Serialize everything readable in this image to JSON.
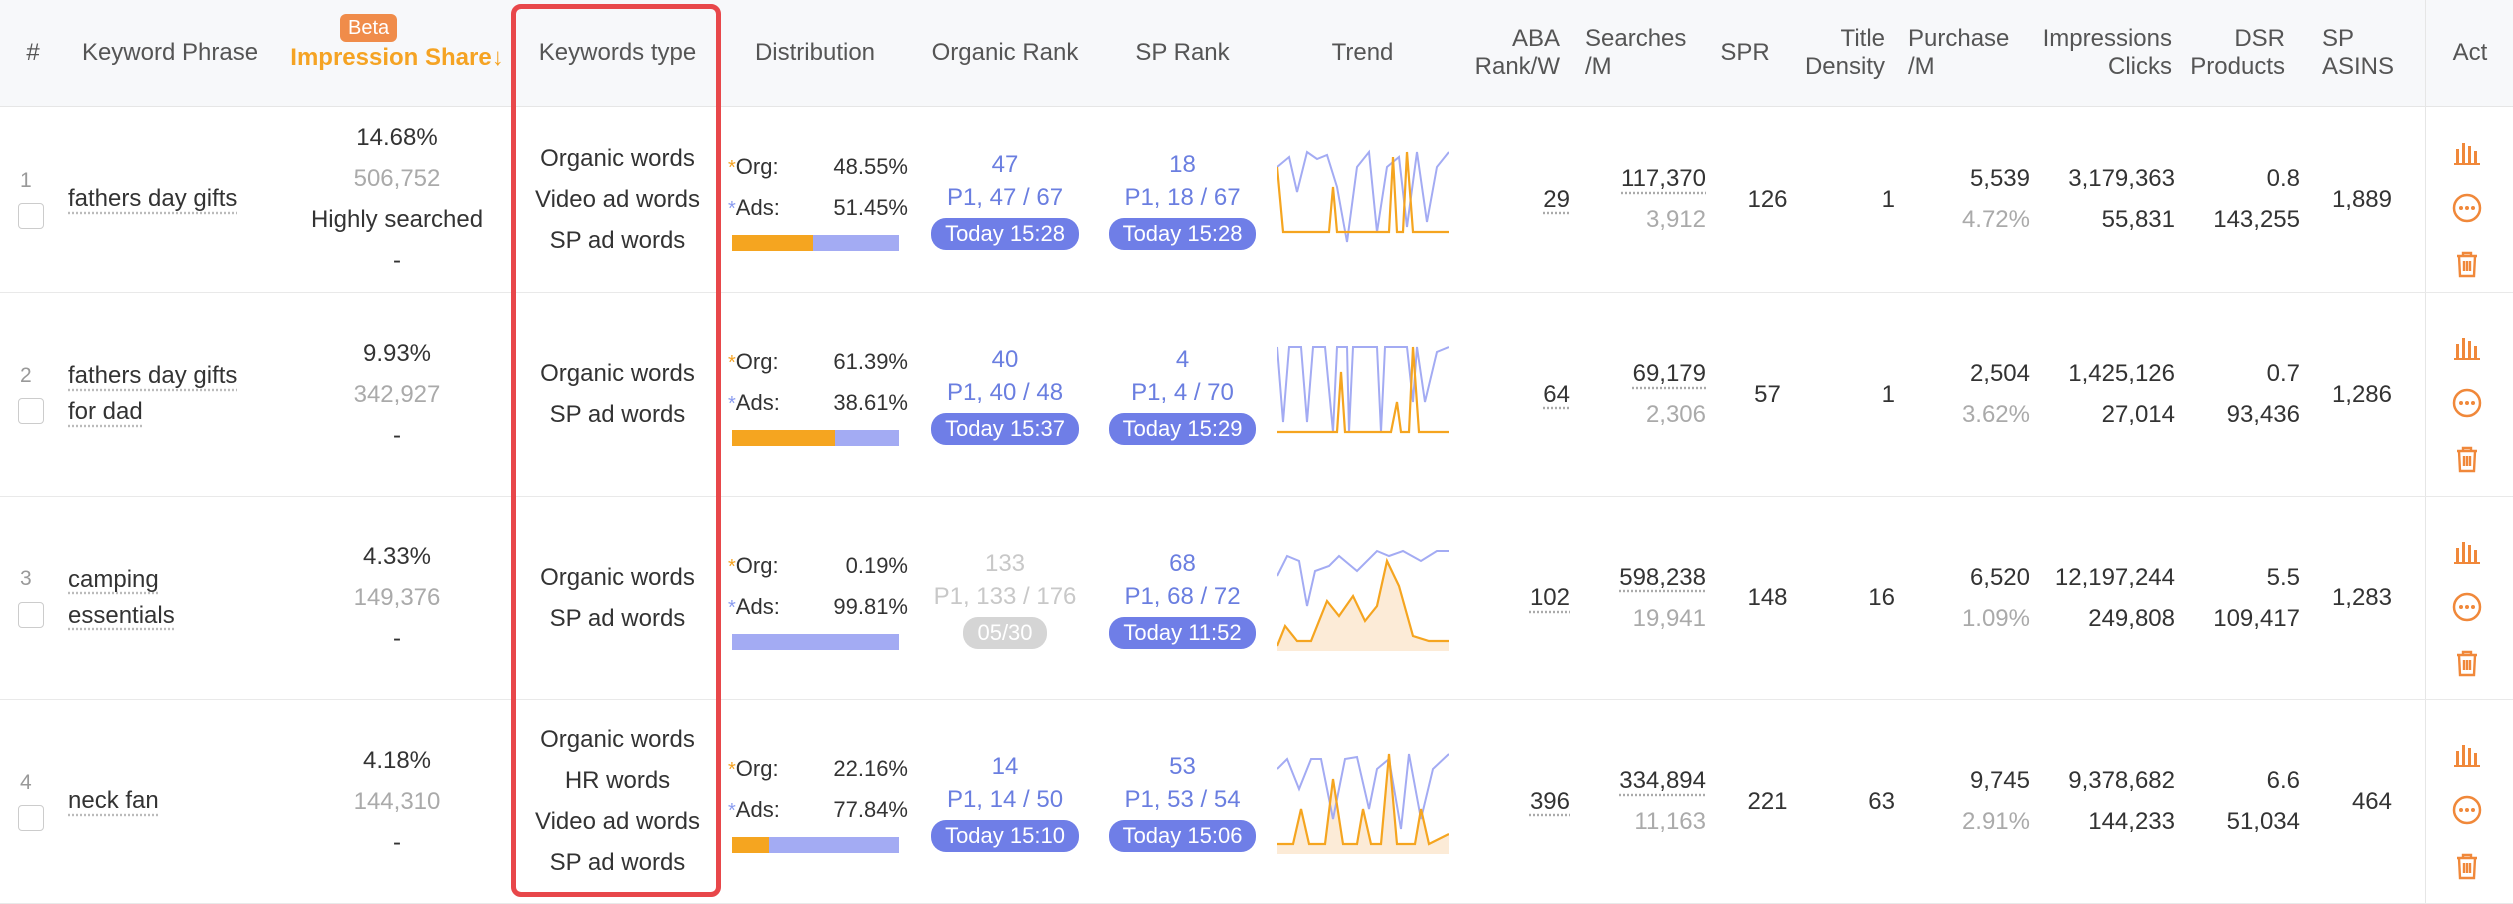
{
  "header": {
    "num": "#",
    "keyword": "Keyword Phrase",
    "beta": "Beta",
    "impression": "Impression Share↓",
    "kwtype": "Keywords type",
    "distribution": "Distribution",
    "organic_rank": "Organic Rank",
    "sp_rank": "SP Rank",
    "trend": "Trend",
    "aba_1": "ABA",
    "aba_2": "Rank/W",
    "searches_1": "Searches",
    "searches_2": "/M",
    "spr": "SPR",
    "title_1": "Title",
    "title_2": "Density",
    "purchase_1": "Purchase",
    "purchase_2": "/M",
    "imp_1": "Impressions",
    "imp_2": "Clicks",
    "dsr_1": "DSR",
    "dsr_2": "Products",
    "spa_1": "SP",
    "spa_2": "ASINS",
    "act": "Act"
  },
  "colors": {
    "accent": "#f5a323",
    "blue": "#6f7ee7",
    "highlight": "#e8474a"
  },
  "rows": [
    {
      "n": "1",
      "kw1": "fathers day gifts",
      "kw2": "",
      "imp": "14.68%",
      "imp_count": "506,752",
      "imp_label": "Highly searched",
      "imp_dash": "-",
      "types": [
        "Organic words",
        "Video ad words",
        "SP ad words"
      ],
      "org_label": "Org:",
      "org": "48.55%",
      "org_frac": 0.4855,
      "ads_label": "Ads:",
      "ads": "51.45%",
      "or_rank": "47",
      "or_page": "P1, 47 / 67",
      "or_time": "Today 15:28",
      "sp_rank": "18",
      "sp_page": "P1, 18 / 67",
      "sp_time": "Today 15:28",
      "aba": "29",
      "searches": "117,370",
      "searches2": "3,912",
      "spr": "126",
      "title": "1",
      "purchase": "5,539",
      "purchase_pct": "4.72%",
      "impressions": "3,179,363",
      "clicks": "55,831",
      "dsr": "0.8",
      "products": "143,255",
      "asins": "1,889"
    },
    {
      "n": "2",
      "kw1": "fathers day gifts",
      "kw2": "for dad",
      "imp": "9.93%",
      "imp_count": "342,927",
      "imp_label": "",
      "imp_dash": "-",
      "types": [
        "Organic words",
        "SP ad words"
      ],
      "org_label": "Org:",
      "org": "61.39%",
      "org_frac": 0.6139,
      "ads_label": "Ads:",
      "ads": "38.61%",
      "or_rank": "40",
      "or_page": "P1, 40 / 48",
      "or_time": "Today 15:37",
      "sp_rank": "4",
      "sp_page": "P1, 4 / 70",
      "sp_time": "Today 15:29",
      "aba": "64",
      "searches": "69,179",
      "searches2": "2,306",
      "spr": "57",
      "title": "1",
      "purchase": "2,504",
      "purchase_pct": "3.62%",
      "impressions": "1,425,126",
      "clicks": "27,014",
      "dsr": "0.7",
      "products": "93,436",
      "asins": "1,286"
    },
    {
      "n": "3",
      "kw1": "camping",
      "kw2": "essentials",
      "imp": "4.33%",
      "imp_count": "149,376",
      "imp_label": "",
      "imp_dash": "-",
      "types": [
        "Organic words",
        "SP ad words"
      ],
      "org_label": "Org:",
      "org": "0.19%",
      "org_frac": 0.0019,
      "ads_label": "Ads:",
      "ads": "99.81%",
      "or_rank": "133",
      "or_page": "P1, 133 / 176",
      "or_time": "05/30",
      "sp_rank": "68",
      "sp_page": "P1, 68 / 72",
      "sp_time": "Today 11:52",
      "aba": "102",
      "searches": "598,238",
      "searches2": "19,941",
      "spr": "148",
      "title": "16",
      "purchase": "6,520",
      "purchase_pct": "1.09%",
      "impressions": "12,197,244",
      "clicks": "249,808",
      "dsr": "5.5",
      "products": "109,417",
      "asins": "1,283"
    },
    {
      "n": "4",
      "kw1": "neck fan",
      "kw2": "",
      "imp": "4.18%",
      "imp_count": "144,310",
      "imp_label": "",
      "imp_dash": "-",
      "types": [
        "Organic words",
        "HR words",
        "Video ad words",
        "SP ad words"
      ],
      "org_label": "Org:",
      "org": "22.16%",
      "org_frac": 0.2216,
      "ads_label": "Ads:",
      "ads": "77.84%",
      "or_rank": "14",
      "or_page": "P1, 14 / 50",
      "or_time": "Today 15:10",
      "sp_rank": "53",
      "sp_page": "P1, 53 / 54",
      "sp_time": "Today 15:06",
      "aba": "396",
      "searches": "334,894",
      "searches2": "11,163",
      "spr": "221",
      "title": "63",
      "purchase": "9,745",
      "purchase_pct": "2.91%",
      "impressions": "9,378,682",
      "clicks": "144,233",
      "dsr": "6.6",
      "products": "51,034",
      "asins": "464"
    }
  ]
}
